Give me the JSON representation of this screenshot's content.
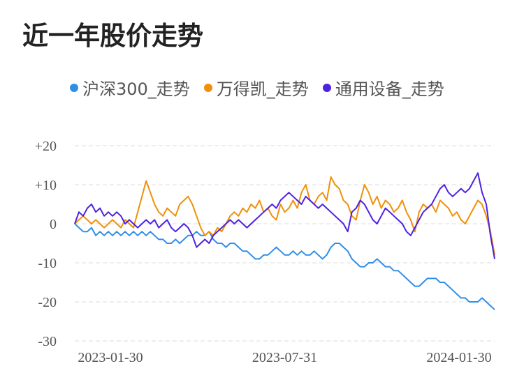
{
  "page_title": "近一年股价走势",
  "chart_data": {
    "type": "line",
    "title": "近一年股价走势",
    "xlabel": "",
    "ylabel": "",
    "x_ticks": [
      "2023-01-30",
      "2023-07-31",
      "2024-01-30"
    ],
    "y_ticks": [
      "+20",
      "+10",
      "0",
      "-10",
      "-20",
      "-30"
    ],
    "y_tick_values": [
      20,
      10,
      0,
      -10,
      -20,
      -30
    ],
    "ylim": [
      -30,
      20
    ],
    "xlim": [
      0,
      100
    ],
    "grid": true,
    "legend_position": "top",
    "series": [
      {
        "name": "沪深300_走势",
        "color": "#2f8fe8",
        "points": [
          [
            0,
            0
          ],
          [
            1,
            -1
          ],
          [
            2,
            -2
          ],
          [
            3,
            -2
          ],
          [
            4,
            -1
          ],
          [
            5,
            -3
          ],
          [
            6,
            -2
          ],
          [
            7,
            -3
          ],
          [
            8,
            -2
          ],
          [
            9,
            -3
          ],
          [
            10,
            -2
          ],
          [
            11,
            -3
          ],
          [
            12,
            -2
          ],
          [
            13,
            -3
          ],
          [
            14,
            -2
          ],
          [
            15,
            -3
          ],
          [
            16,
            -2
          ],
          [
            17,
            -3
          ],
          [
            18,
            -2
          ],
          [
            19,
            -3
          ],
          [
            20,
            -4
          ],
          [
            21,
            -4
          ],
          [
            22,
            -5
          ],
          [
            23,
            -5
          ],
          [
            24,
            -4
          ],
          [
            25,
            -5
          ],
          [
            26,
            -4
          ],
          [
            27,
            -3
          ],
          [
            28,
            -3
          ],
          [
            29,
            -2
          ],
          [
            30,
            -3
          ],
          [
            31,
            -3
          ],
          [
            32,
            -2
          ],
          [
            33,
            -4
          ],
          [
            34,
            -5
          ],
          [
            35,
            -5
          ],
          [
            36,
            -6
          ],
          [
            37,
            -5
          ],
          [
            38,
            -5
          ],
          [
            39,
            -6
          ],
          [
            40,
            -7
          ],
          [
            41,
            -7
          ],
          [
            42,
            -8
          ],
          [
            43,
            -9
          ],
          [
            44,
            -9
          ],
          [
            45,
            -8
          ],
          [
            46,
            -8
          ],
          [
            47,
            -7
          ],
          [
            48,
            -6
          ],
          [
            49,
            -7
          ],
          [
            50,
            -8
          ],
          [
            51,
            -8
          ],
          [
            52,
            -7
          ],
          [
            53,
            -8
          ],
          [
            54,
            -7
          ],
          [
            55,
            -8
          ],
          [
            56,
            -8
          ],
          [
            57,
            -7
          ],
          [
            58,
            -8
          ],
          [
            59,
            -9
          ],
          [
            60,
            -8
          ],
          [
            61,
            -6
          ],
          [
            62,
            -5
          ],
          [
            63,
            -5
          ],
          [
            64,
            -6
          ],
          [
            65,
            -7
          ],
          [
            66,
            -9
          ],
          [
            67,
            -10
          ],
          [
            68,
            -11
          ],
          [
            69,
            -11
          ],
          [
            70,
            -10
          ],
          [
            71,
            -10
          ],
          [
            72,
            -9
          ],
          [
            73,
            -10
          ],
          [
            74,
            -11
          ],
          [
            75,
            -11
          ],
          [
            76,
            -12
          ],
          [
            77,
            -12
          ],
          [
            78,
            -13
          ],
          [
            79,
            -14
          ],
          [
            80,
            -15
          ],
          [
            81,
            -16
          ],
          [
            82,
            -16
          ],
          [
            83,
            -15
          ],
          [
            84,
            -14
          ],
          [
            85,
            -14
          ],
          [
            86,
            -14
          ],
          [
            87,
            -15
          ],
          [
            88,
            -15
          ],
          [
            89,
            -16
          ],
          [
            90,
            -17
          ],
          [
            91,
            -18
          ],
          [
            92,
            -19
          ],
          [
            93,
            -19
          ],
          [
            94,
            -20
          ],
          [
            95,
            -20
          ],
          [
            96,
            -20
          ],
          [
            97,
            -19
          ],
          [
            98,
            -20
          ],
          [
            99,
            -21
          ],
          [
            100,
            -22
          ]
        ]
      },
      {
        "name": "万得凯_走势",
        "color": "#f0900a",
        "points": [
          [
            0,
            0
          ],
          [
            1,
            1
          ],
          [
            2,
            2
          ],
          [
            3,
            1
          ],
          [
            4,
            0
          ],
          [
            5,
            1
          ],
          [
            6,
            0
          ],
          [
            7,
            -1
          ],
          [
            8,
            0
          ],
          [
            9,
            1
          ],
          [
            10,
            0
          ],
          [
            11,
            -1
          ],
          [
            12,
            1
          ],
          [
            13,
            0
          ],
          [
            14,
            -1
          ],
          [
            15,
            3
          ],
          [
            16,
            7
          ],
          [
            17,
            11
          ],
          [
            18,
            8
          ],
          [
            19,
            5
          ],
          [
            20,
            3
          ],
          [
            21,
            2
          ],
          [
            22,
            4
          ],
          [
            23,
            3
          ],
          [
            24,
            2
          ],
          [
            25,
            5
          ],
          [
            26,
            6
          ],
          [
            27,
            7
          ],
          [
            28,
            5
          ],
          [
            29,
            2
          ],
          [
            30,
            -1
          ],
          [
            31,
            -3
          ],
          [
            32,
            -2
          ],
          [
            33,
            -3
          ],
          [
            34,
            -1
          ],
          [
            35,
            -2
          ],
          [
            36,
            0
          ],
          [
            37,
            2
          ],
          [
            38,
            3
          ],
          [
            39,
            2
          ],
          [
            40,
            4
          ],
          [
            41,
            3
          ],
          [
            42,
            5
          ],
          [
            43,
            4
          ],
          [
            44,
            6
          ],
          [
            45,
            3
          ],
          [
            46,
            4
          ],
          [
            47,
            2
          ],
          [
            48,
            1
          ],
          [
            49,
            5
          ],
          [
            50,
            3
          ],
          [
            51,
            4
          ],
          [
            52,
            6
          ],
          [
            53,
            4
          ],
          [
            54,
            8
          ],
          [
            55,
            10
          ],
          [
            56,
            6
          ],
          [
            57,
            5
          ],
          [
            58,
            7
          ],
          [
            59,
            8
          ],
          [
            60,
            6
          ],
          [
            61,
            12
          ],
          [
            62,
            10
          ],
          [
            63,
            9
          ],
          [
            64,
            6
          ],
          [
            65,
            5
          ],
          [
            66,
            2
          ],
          [
            67,
            1
          ],
          [
            68,
            6
          ],
          [
            69,
            10
          ],
          [
            70,
            8
          ],
          [
            71,
            5
          ],
          [
            72,
            7
          ],
          [
            73,
            4
          ],
          [
            74,
            6
          ],
          [
            75,
            5
          ],
          [
            76,
            3
          ],
          [
            77,
            4
          ],
          [
            78,
            6
          ],
          [
            79,
            3
          ],
          [
            80,
            1
          ],
          [
            81,
            -2
          ],
          [
            82,
            3
          ],
          [
            83,
            5
          ],
          [
            84,
            4
          ],
          [
            85,
            5
          ],
          [
            86,
            3
          ],
          [
            87,
            6
          ],
          [
            88,
            5
          ],
          [
            89,
            4
          ],
          [
            90,
            2
          ],
          [
            91,
            3
          ],
          [
            92,
            1
          ],
          [
            93,
            0
          ],
          [
            94,
            2
          ],
          [
            95,
            4
          ],
          [
            96,
            6
          ],
          [
            97,
            5
          ],
          [
            98,
            2
          ],
          [
            99,
            -2
          ],
          [
            100,
            -8
          ]
        ]
      },
      {
        "name": "通用设备_走势",
        "color": "#4d22e0",
        "points": [
          [
            0,
            0
          ],
          [
            1,
            3
          ],
          [
            2,
            2
          ],
          [
            3,
            4
          ],
          [
            4,
            5
          ],
          [
            5,
            3
          ],
          [
            6,
            4
          ],
          [
            7,
            2
          ],
          [
            8,
            3
          ],
          [
            9,
            2
          ],
          [
            10,
            3
          ],
          [
            11,
            2
          ],
          [
            12,
            0
          ],
          [
            13,
            1
          ],
          [
            14,
            0
          ],
          [
            15,
            -1
          ],
          [
            16,
            0
          ],
          [
            17,
            1
          ],
          [
            18,
            0
          ],
          [
            19,
            1
          ],
          [
            20,
            -1
          ],
          [
            21,
            0
          ],
          [
            22,
            1
          ],
          [
            23,
            -1
          ],
          [
            24,
            -2
          ],
          [
            25,
            -1
          ],
          [
            26,
            0
          ],
          [
            27,
            -1
          ],
          [
            28,
            -3
          ],
          [
            29,
            -6
          ],
          [
            30,
            -5
          ],
          [
            31,
            -4
          ],
          [
            32,
            -5
          ],
          [
            33,
            -3
          ],
          [
            34,
            -2
          ],
          [
            35,
            -1
          ],
          [
            36,
            0
          ],
          [
            37,
            1
          ],
          [
            38,
            0
          ],
          [
            39,
            1
          ],
          [
            40,
            0
          ],
          [
            41,
            -1
          ],
          [
            42,
            0
          ],
          [
            43,
            1
          ],
          [
            44,
            2
          ],
          [
            45,
            3
          ],
          [
            46,
            4
          ],
          [
            47,
            5
          ],
          [
            48,
            4
          ],
          [
            49,
            6
          ],
          [
            50,
            7
          ],
          [
            51,
            8
          ],
          [
            52,
            7
          ],
          [
            53,
            6
          ],
          [
            54,
            5
          ],
          [
            55,
            7
          ],
          [
            56,
            6
          ],
          [
            57,
            5
          ],
          [
            58,
            4
          ],
          [
            59,
            5
          ],
          [
            60,
            4
          ],
          [
            61,
            3
          ],
          [
            62,
            2
          ],
          [
            63,
            1
          ],
          [
            64,
            0
          ],
          [
            65,
            -2
          ],
          [
            66,
            3
          ],
          [
            67,
            4
          ],
          [
            68,
            6
          ],
          [
            69,
            5
          ],
          [
            70,
            3
          ],
          [
            71,
            1
          ],
          [
            72,
            0
          ],
          [
            73,
            2
          ],
          [
            74,
            4
          ],
          [
            75,
            3
          ],
          [
            76,
            2
          ],
          [
            77,
            1
          ],
          [
            78,
            0
          ],
          [
            79,
            -2
          ],
          [
            80,
            -3
          ],
          [
            81,
            -1
          ],
          [
            82,
            1
          ],
          [
            83,
            3
          ],
          [
            84,
            4
          ],
          [
            85,
            5
          ],
          [
            86,
            7
          ],
          [
            87,
            9
          ],
          [
            88,
            10
          ],
          [
            89,
            8
          ],
          [
            90,
            7
          ],
          [
            91,
            8
          ],
          [
            92,
            9
          ],
          [
            93,
            8
          ],
          [
            94,
            9
          ],
          [
            95,
            11
          ],
          [
            96,
            13
          ],
          [
            97,
            8
          ],
          [
            98,
            5
          ],
          [
            99,
            -3
          ],
          [
            100,
            -9
          ]
        ]
      }
    ]
  }
}
